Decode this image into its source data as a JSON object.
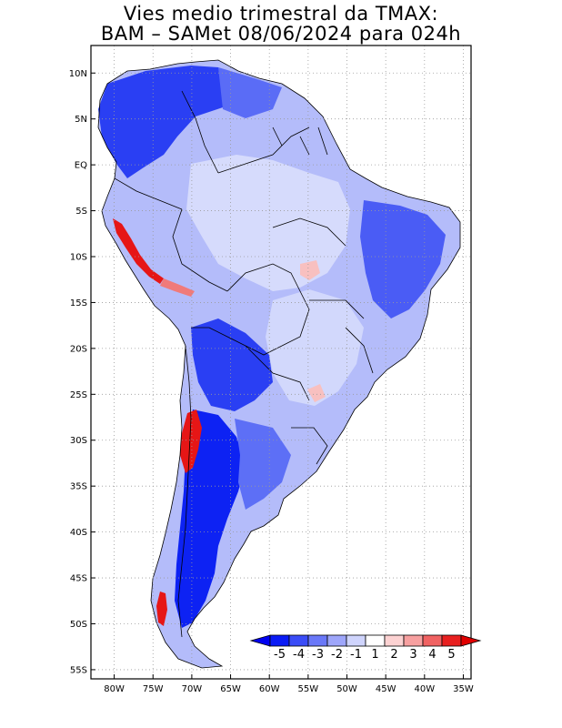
{
  "title": {
    "line1": "Vies medio trimestral da TMAX:",
    "line2": "BAM – SAMet 08/06/2024  para 024h"
  },
  "axes": {
    "lat_ticks": [
      {
        "lat": 10,
        "label": "10N"
      },
      {
        "lat": 5,
        "label": "5N"
      },
      {
        "lat": 0,
        "label": "EQ"
      },
      {
        "lat": -5,
        "label": "5S"
      },
      {
        "lat": -10,
        "label": "10S"
      },
      {
        "lat": -15,
        "label": "15S"
      },
      {
        "lat": -20,
        "label": "20S"
      },
      {
        "lat": -25,
        "label": "25S"
      },
      {
        "lat": -30,
        "label": "30S"
      },
      {
        "lat": -35,
        "label": "35S"
      },
      {
        "lat": -40,
        "label": "40S"
      },
      {
        "lat": -45,
        "label": "45S"
      },
      {
        "lat": -50,
        "label": "50S"
      },
      {
        "lat": -55,
        "label": "55S"
      }
    ],
    "lon_ticks": [
      {
        "lon": -80,
        "label": "80W"
      },
      {
        "lon": -75,
        "label": "75W"
      },
      {
        "lon": -70,
        "label": "70W"
      },
      {
        "lon": -65,
        "label": "65W"
      },
      {
        "lon": -60,
        "label": "60W"
      },
      {
        "lon": -55,
        "label": "55W"
      },
      {
        "lon": -50,
        "label": "50W"
      },
      {
        "lon": -45,
        "label": "45W"
      },
      {
        "lon": -40,
        "label": "40W"
      },
      {
        "lon": -35,
        "label": "35W"
      }
    ],
    "lon_range": [
      -83,
      -34
    ],
    "lat_range": [
      -56,
      13
    ],
    "grid": "dotted"
  },
  "colorbar": {
    "labels": [
      "-5",
      "-4",
      "-3",
      "-2",
      "-1",
      "1",
      "2",
      "3",
      "4",
      "5"
    ],
    "colors": [
      "#0a1bf5",
      "#3a4cf7",
      "#6a78f8",
      "#9ea6fa",
      "#cfd4fc",
      "#ffffff",
      "#fcd2d2",
      "#f7a0a0",
      "#f06262",
      "#e82020"
    ]
  },
  "colors": {
    "strong_blue": "#1d33f2",
    "mid_blue": "#5a6cf6",
    "light_blue": "#a9b3f9",
    "pale_blue": "#d6dbfc",
    "red": "#e61616",
    "light_red": "#f8b4b4",
    "grid": "#9a9a9a"
  }
}
